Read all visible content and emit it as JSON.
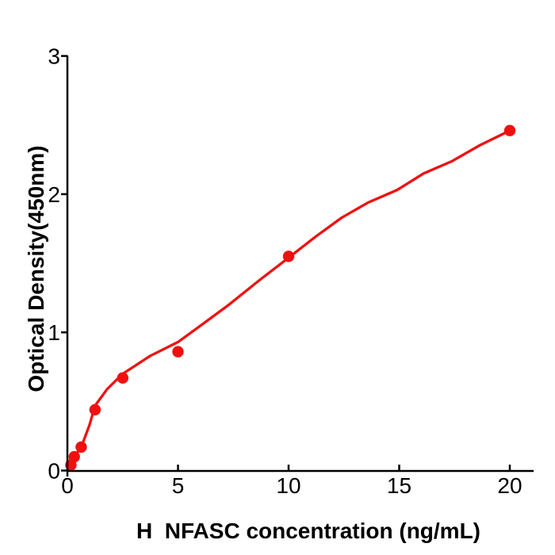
{
  "chart_data": {
    "type": "scatter",
    "title": "",
    "xlabel": "H  NFASC concentration (ng/mL)",
    "ylabel": "Optical Density(450nm)",
    "x_ticks": [
      0,
      5,
      10,
      15,
      20
    ],
    "y_ticks": [
      0,
      1,
      2,
      3
    ],
    "xlim": [
      0,
      21.1
    ],
    "ylim": [
      0,
      3
    ],
    "grid": false,
    "legend": "none",
    "point_color": "#f01010",
    "curve_color": "#f01010",
    "axis_color": "#000000",
    "background_color": "#ffffff",
    "points": [
      {
        "x": 0.156,
        "od": 0.04
      },
      {
        "x": 0.313,
        "od": 0.1
      },
      {
        "x": 0.625,
        "od": 0.17
      },
      {
        "x": 1.25,
        "od": 0.44
      },
      {
        "x": 2.5,
        "od": 0.67
      },
      {
        "x": 5,
        "od": 0.86
      },
      {
        "x": 10,
        "od": 1.55
      },
      {
        "x": 20,
        "od": 2.46
      }
    ],
    "fit_curve": [
      [
        0,
        0.005
      ],
      [
        0.2,
        0.07
      ],
      [
        0.4,
        0.115
      ],
      [
        0.7,
        0.2
      ],
      [
        1.0,
        0.33
      ],
      [
        1.25,
        0.47
      ],
      [
        1.8,
        0.59
      ],
      [
        2.5,
        0.7
      ],
      [
        3.75,
        0.83
      ],
      [
        5,
        0.93
      ],
      [
        6.2,
        1.07
      ],
      [
        7.3,
        1.2
      ],
      [
        8.7,
        1.38
      ],
      [
        10,
        1.54
      ],
      [
        11.2,
        1.69
      ],
      [
        12.4,
        1.83
      ],
      [
        13.6,
        1.94
      ],
      [
        14.9,
        2.03
      ],
      [
        16.1,
        2.15
      ],
      [
        17.4,
        2.24
      ],
      [
        18.6,
        2.35
      ],
      [
        20,
        2.46
      ]
    ]
  }
}
